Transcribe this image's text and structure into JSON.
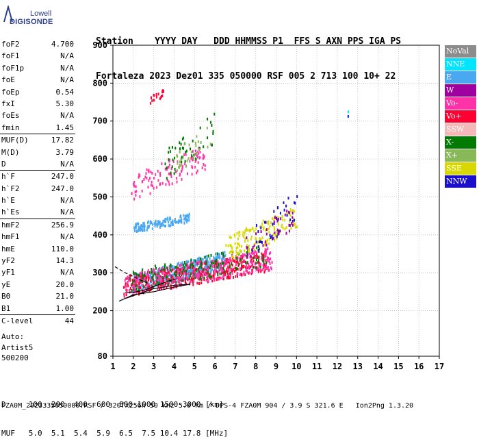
{
  "logo": {
    "line1": "Lowell",
    "line2": "DIGISONDE"
  },
  "header": {
    "labels": "Station    YYYY DAY   DDD HHMMSS P1  FFS S AXN PPS IGA PS",
    "values": "Fortaleza 2023 Dez01 335 050000 RSF 005 2 713 100 10+ 22"
  },
  "params": {
    "group1": [
      {
        "k": "foF2",
        "v": "4.700"
      },
      {
        "k": "foF1",
        "v": "N/A"
      },
      {
        "k": "foF1p",
        "v": "N/A"
      },
      {
        "k": "foE",
        "v": "N/A"
      },
      {
        "k": "foEp",
        "v": "0.54"
      },
      {
        "k": "fxI",
        "v": "5.30"
      },
      {
        "k": "foEs",
        "v": "N/A"
      },
      {
        "k": "fmin",
        "v": "1.45"
      }
    ],
    "group2": [
      {
        "k": "MUF(D)",
        "v": "17.82"
      },
      {
        "k": "M(D)",
        "v": "3.79"
      },
      {
        "k": "D",
        "v": "N/A"
      }
    ],
    "group3": [
      {
        "k": "h`F",
        "v": "247.0"
      },
      {
        "k": "h`F2",
        "v": "247.0"
      },
      {
        "k": "h`E",
        "v": "N/A"
      },
      {
        "k": "h`Es",
        "v": "N/A"
      }
    ],
    "group4": [
      {
        "k": "hmF2",
        "v": "256.9"
      },
      {
        "k": "hmF1",
        "v": "N/A"
      },
      {
        "k": "hmE",
        "v": "110.0"
      },
      {
        "k": "yF2",
        "v": "14.3"
      },
      {
        "k": "yF1",
        "v": "N/A"
      },
      {
        "k": "yE",
        "v": "20.0"
      },
      {
        "k": "B0",
        "v": "21.0"
      },
      {
        "k": "B1",
        "v": "1.00"
      }
    ],
    "group5": [
      {
        "k": "C-level",
        "v": "44"
      }
    ]
  },
  "auto": {
    "line1": "Auto:",
    "line2": "Artist5",
    "line3": "500200"
  },
  "legend": [
    {
      "label": "NoVal",
      "color": "#8c8c8c"
    },
    {
      "label": "NNE",
      "color": "#00e5ff"
    },
    {
      "label": "E",
      "color": "#4aa8f0"
    },
    {
      "label": "W",
      "color": "#a000a0"
    },
    {
      "label": "Vo-",
      "color": "#ff33a8"
    },
    {
      "label": "Vo+",
      "color": "#ff0033"
    },
    {
      "label": "SSW",
      "color": "#f5b8b8"
    },
    {
      "label": "X-",
      "color": "#007a00"
    },
    {
      "label": "X+",
      "color": "#88b858"
    },
    {
      "label": "SSE",
      "color": "#d8d800"
    },
    {
      "label": "NNW",
      "color": "#1a10cc"
    }
  ],
  "bottom": {
    "row1": "D     100  200  400  600  800 1000 1500 3000 [km]",
    "row2": "MUF   5.0  5.1  5.4  5.9  6.5  7.5 10.4 17.8 [MHz]"
  },
  "footer": "FZA0M_2023335050000.RSF / 320fx256h 50 kHz 5.0 km / DPS-4 FZA0M 904 / 3.9 S 321.6 E   Ion2Png 1.3.20",
  "chart_data": {
    "type": "scatter",
    "x_range": [
      1,
      17
    ],
    "y_range": [
      80,
      900
    ],
    "x_ticks": [
      1,
      2,
      3,
      4,
      5,
      6,
      7,
      8,
      9,
      10,
      11,
      12,
      13,
      14,
      15,
      16,
      17
    ],
    "y_ticks": [
      80,
      200,
      300,
      400,
      500,
      600,
      700,
      800,
      900
    ],
    "grid": true,
    "clusters": [
      {
        "color": "#4aa8f0",
        "x0": 1.9,
        "x1": 6.5,
        "y0": 250,
        "y1": 360,
        "n": 500
      },
      {
        "color": "#4aa8f0",
        "x0": 2.0,
        "x1": 4.8,
        "y0": 410,
        "y1": 460,
        "n": 140
      },
      {
        "color": "#ff0033",
        "x0": 1.5,
        "x1": 8.5,
        "y0": 240,
        "y1": 360,
        "n": 420
      },
      {
        "color": "#ff33a8",
        "x0": 1.5,
        "x1": 8.8,
        "y0": 240,
        "y1": 370,
        "n": 320
      },
      {
        "color": "#007a00",
        "x0": 1.8,
        "x1": 8.5,
        "y0": 250,
        "y1": 380,
        "n": 160
      },
      {
        "color": "#d8d800",
        "x0": 6.5,
        "x1": 10.0,
        "y0": 330,
        "y1": 480,
        "n": 140
      },
      {
        "color": "#1a10cc",
        "x0": 7.8,
        "x1": 10.0,
        "y0": 340,
        "y1": 520,
        "n": 40
      },
      {
        "color": "#ff33a8",
        "x0": 1.8,
        "x1": 5.5,
        "y0": 490,
        "y1": 640,
        "n": 120
      },
      {
        "color": "#007a00",
        "x0": 3.5,
        "x1": 6.0,
        "y0": 540,
        "y1": 730,
        "n": 50
      },
      {
        "color": "#ff0033",
        "x0": 2.8,
        "x1": 3.6,
        "y0": 740,
        "y1": 800,
        "n": 20
      },
      {
        "color": "#88b858",
        "x0": 4.0,
        "x1": 5.8,
        "y0": 560,
        "y1": 700,
        "n": 30
      },
      {
        "color": "#a000a0",
        "x0": 7.5,
        "x1": 9.8,
        "y0": 340,
        "y1": 480,
        "n": 40
      }
    ],
    "curves": [
      {
        "name": "o-trace",
        "points": [
          [
            1.3,
            225
          ],
          [
            2.0,
            242
          ],
          [
            3.0,
            250
          ],
          [
            4.0,
            262
          ],
          [
            4.8,
            270
          ],
          [
            4.0,
            267
          ],
          [
            3.0,
            258
          ],
          [
            2.3,
            245
          ],
          [
            1.6,
            232
          ]
        ]
      },
      {
        "name": "dashed",
        "points": [
          [
            1.1,
            316
          ],
          [
            1.6,
            300
          ],
          [
            2.2,
            285
          ],
          [
            2.8,
            270
          ]
        ]
      },
      {
        "name": "x-trace",
        "points": [
          [
            1.6,
            247
          ],
          [
            2.0,
            248
          ],
          [
            2.6,
            255
          ],
          [
            3.2,
            268
          ],
          [
            3.7,
            278
          ],
          [
            4.1,
            284
          ]
        ]
      }
    ]
  }
}
